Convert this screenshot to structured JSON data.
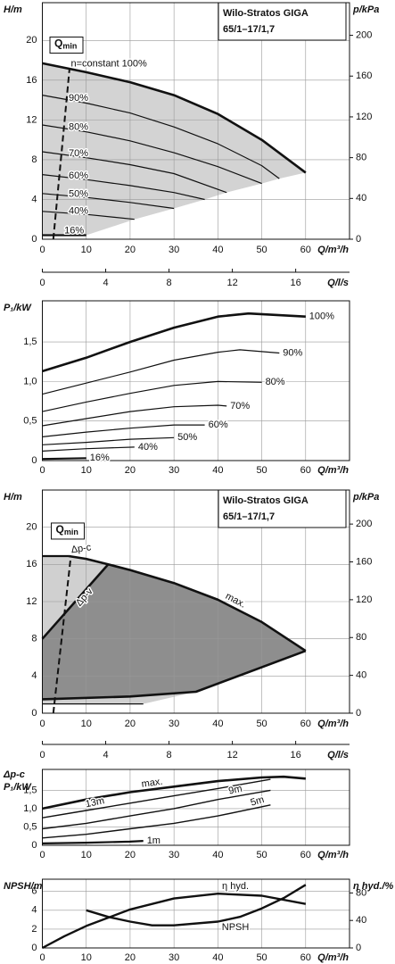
{
  "chart_data": [
    {
      "type": "line",
      "title": "Wilo-Stratos GIGA",
      "subtitle": "65/1–17/1,7",
      "ylabel": "H/m",
      "y2label": "p/kPa",
      "xlabel": "Q/m³/h",
      "x2label": "Q/l/s",
      "xlim": [
        0,
        70
      ],
      "xticks": [
        0,
        10,
        20,
        30,
        40,
        50,
        60
      ],
      "x2lim": [
        0,
        19.4
      ],
      "x2ticks": [
        0,
        4,
        8,
        12,
        16
      ],
      "ylim": [
        0,
        23.8
      ],
      "yticks": [
        0,
        4,
        8,
        12,
        16,
        20
      ],
      "y2lim": [
        0,
        232
      ],
      "y2ticks": [
        0,
        40,
        80,
        120,
        160,
        200
      ],
      "grid": true,
      "fill_color": "#d3d3d3",
      "qmin": {
        "label": "Q",
        "sub": "min",
        "x": [
          2.5,
          6.2
        ],
        "values": [
          0,
          17.2
        ]
      },
      "series": [
        {
          "name": "n=constant 100%",
          "color": "#111111",
          "x": [
            0,
            10,
            20,
            30,
            40,
            50,
            60
          ],
          "values": [
            17.7,
            16.8,
            15.8,
            14.5,
            12.6,
            10.0,
            6.7
          ]
        },
        {
          "name": "90%",
          "color": "#111111",
          "x": [
            0,
            10,
            20,
            30,
            40,
            50,
            54
          ],
          "values": [
            14.5,
            13.7,
            12.7,
            11.3,
            9.6,
            7.4,
            6.1
          ]
        },
        {
          "name": "80%",
          "color": "#111111",
          "x": [
            0,
            10,
            20,
            30,
            40,
            50
          ],
          "values": [
            11.5,
            10.8,
            9.9,
            8.7,
            7.3,
            5.6
          ]
        },
        {
          "name": "70%",
          "color": "#111111",
          "x": [
            0,
            10,
            20,
            30,
            42
          ],
          "values": [
            8.8,
            8.2,
            7.5,
            6.6,
            4.7
          ]
        },
        {
          "name": "60%",
          "color": "#111111",
          "x": [
            0,
            10,
            20,
            30,
            37
          ],
          "values": [
            6.5,
            6.0,
            5.4,
            4.7,
            4.0
          ]
        },
        {
          "name": "50%",
          "color": "#111111",
          "x": [
            0,
            10,
            20,
            30
          ],
          "values": [
            4.6,
            4.2,
            3.7,
            3.1
          ]
        },
        {
          "name": "40%",
          "color": "#111111",
          "x": [
            0,
            10,
            21
          ],
          "values": [
            2.8,
            2.5,
            2.0
          ]
        },
        {
          "name": "16%",
          "color": "#111111",
          "x": [
            0,
            10
          ],
          "values": [
            0.4,
            0.4
          ]
        }
      ]
    },
    {
      "type": "line",
      "ylabel": "P₁/kW",
      "xlabel": "Q/m³/h",
      "xlim": [
        0,
        70
      ],
      "xticks": [
        0,
        10,
        20,
        30,
        40,
        50,
        60
      ],
      "ylim": [
        0,
        2.02
      ],
      "yticks": [
        0,
        {
          "value": 0.5,
          "label": "0,5"
        },
        {
          "value": 1,
          "label": "1,0"
        },
        {
          "value": 1.5,
          "label": "1,5"
        }
      ],
      "grid": true,
      "series": [
        {
          "name": "100%",
          "color": "#111111",
          "x": [
            0,
            10,
            20,
            30,
            40,
            47,
            60
          ],
          "values": [
            1.13,
            1.3,
            1.5,
            1.68,
            1.82,
            1.86,
            1.82
          ]
        },
        {
          "name": "90%",
          "color": "#111111",
          "x": [
            0,
            10,
            20,
            30,
            40,
            45,
            54
          ],
          "values": [
            0.84,
            0.98,
            1.12,
            1.27,
            1.37,
            1.4,
            1.36
          ]
        },
        {
          "name": "80%",
          "color": "#111111",
          "x": [
            0,
            10,
            20,
            30,
            40,
            50
          ],
          "values": [
            0.62,
            0.74,
            0.85,
            0.95,
            1.0,
            0.99
          ]
        },
        {
          "name": "70%",
          "color": "#111111",
          "x": [
            0,
            10,
            20,
            30,
            40,
            42
          ],
          "values": [
            0.44,
            0.53,
            0.62,
            0.68,
            0.7,
            0.69
          ]
        },
        {
          "name": "60%",
          "color": "#111111",
          "x": [
            0,
            10,
            20,
            30,
            37
          ],
          "values": [
            0.3,
            0.36,
            0.41,
            0.45,
            0.45
          ]
        },
        {
          "name": "50%",
          "color": "#111111",
          "x": [
            0,
            10,
            20,
            30
          ],
          "values": [
            0.2,
            0.23,
            0.27,
            0.29
          ]
        },
        {
          "name": "40%",
          "color": "#111111",
          "x": [
            0,
            10,
            21
          ],
          "values": [
            0.12,
            0.15,
            0.17
          ]
        },
        {
          "name": "16%",
          "color": "#111111",
          "x": [
            0,
            10
          ],
          "values": [
            0.02,
            0.03
          ]
        }
      ]
    },
    {
      "type": "line",
      "title": "Wilo-Stratos GIGA",
      "subtitle": "65/1–17/1,7",
      "ylabel": "H/m",
      "y2label": "p/kPa",
      "xlabel": "Q/m³/h",
      "x2label": "Q/l/s",
      "xlim": [
        0,
        70
      ],
      "xticks": [
        0,
        10,
        20,
        30,
        40,
        50,
        60
      ],
      "x2lim": [
        0,
        19.4
      ],
      "x2ticks": [
        0,
        4,
        8,
        12,
        16
      ],
      "ylim": [
        0,
        24
      ],
      "yticks": [
        0,
        4,
        8,
        12,
        16,
        20
      ],
      "y2lim": [
        0,
        236
      ],
      "y2ticks": [
        0,
        40,
        80,
        120,
        160,
        200
      ],
      "grid": true,
      "fill_colors": [
        "#d0d0d0",
        "#8e8e8e"
      ],
      "qmin": {
        "label": "Q",
        "sub": "min",
        "x": [
          2.5,
          6.5
        ],
        "values": [
          0,
          16.9
        ]
      },
      "series": [
        {
          "name": "max.",
          "color": "#111111",
          "x": [
            6,
            10,
            15,
            20,
            30,
            40,
            50,
            60
          ],
          "values": [
            16.9,
            16.6,
            16.0,
            15.4,
            14.0,
            12.2,
            9.8,
            6.7
          ]
        },
        {
          "name": "Δp-c",
          "color": "#111111",
          "x": [
            0,
            6
          ],
          "values": [
            16.9,
            16.9
          ]
        },
        {
          "name": "Δp-v",
          "color": "#111111",
          "x": [
            0,
            15
          ],
          "values": [
            8,
            16
          ]
        },
        {
          "color": "#111111",
          "x": [
            0,
            20,
            35,
            60
          ],
          "values": [
            1.5,
            1.8,
            2.3,
            6.7
          ]
        },
        {
          "color": "#111111",
          "x": [
            0,
            23
          ],
          "values": [
            1.0,
            1.0
          ]
        }
      ]
    },
    {
      "type": "line",
      "ylabel": "P₁/kW",
      "mode_label": "Δp-c",
      "xlabel": "Q/m³/h",
      "xlim": [
        0,
        70
      ],
      "xticks": [
        0,
        10,
        20,
        30,
        40,
        50,
        60
      ],
      "ylim": [
        0,
        2.07
      ],
      "yticks": [
        0,
        {
          "value": 0.5,
          "label": "0,5"
        },
        {
          "value": 1,
          "label": "1,0"
        },
        {
          "value": 1.5,
          "label": "1,5"
        }
      ],
      "grid": true,
      "series": [
        {
          "name": "max.",
          "color": "#111111",
          "x": [
            0,
            10,
            20,
            30,
            40,
            50,
            55,
            60
          ],
          "values": [
            1.0,
            1.25,
            1.45,
            1.6,
            1.75,
            1.85,
            1.87,
            1.82
          ]
        },
        {
          "name": "13m",
          "color": "#111111",
          "x": [
            0,
            10,
            20,
            30,
            40,
            52
          ],
          "values": [
            0.75,
            0.95,
            1.15,
            1.35,
            1.55,
            1.8
          ]
        },
        {
          "name": "9m",
          "color": "#111111",
          "x": [
            0,
            10,
            20,
            30,
            40,
            52
          ],
          "values": [
            0.45,
            0.6,
            0.8,
            1.0,
            1.25,
            1.5
          ]
        },
        {
          "name": "5m",
          "color": "#111111",
          "x": [
            0,
            10,
            20,
            30,
            40,
            52
          ],
          "values": [
            0.2,
            0.3,
            0.45,
            0.6,
            0.8,
            1.1
          ]
        },
        {
          "name": "1m",
          "color": "#111111",
          "x": [
            0,
            10,
            20,
            23
          ],
          "values": [
            0.05,
            0.07,
            0.1,
            0.12
          ]
        }
      ]
    },
    {
      "type": "line",
      "ylabel": "NPSH/m",
      "y2label": "η hyd./%",
      "xlabel": "Q/m³/h",
      "xlim": [
        0,
        70
      ],
      "xticks": [
        0,
        10,
        20,
        30,
        40,
        50,
        60
      ],
      "ylim": [
        0,
        7.3
      ],
      "yticks": [
        0,
        2,
        4,
        6
      ],
      "y2lim": [
        0,
        100
      ],
      "y2ticks": [
        0,
        40,
        80
      ],
      "grid": true,
      "series": [
        {
          "name": "η hyd.",
          "color": "#111111",
          "axis": "y2",
          "x": [
            0,
            5,
            10,
            20,
            30,
            40,
            50,
            60
          ],
          "values": [
            0,
            17,
            32,
            56,
            72,
            79,
            76,
            64
          ]
        },
        {
          "name": "NPSH",
          "color": "#111111",
          "x": [
            10,
            15,
            20,
            25,
            30,
            40,
            45,
            50,
            55,
            60
          ],
          "values": [
            4.0,
            3.3,
            2.8,
            2.4,
            2.4,
            2.8,
            3.3,
            4.2,
            5.3,
            6.7
          ]
        }
      ]
    }
  ]
}
